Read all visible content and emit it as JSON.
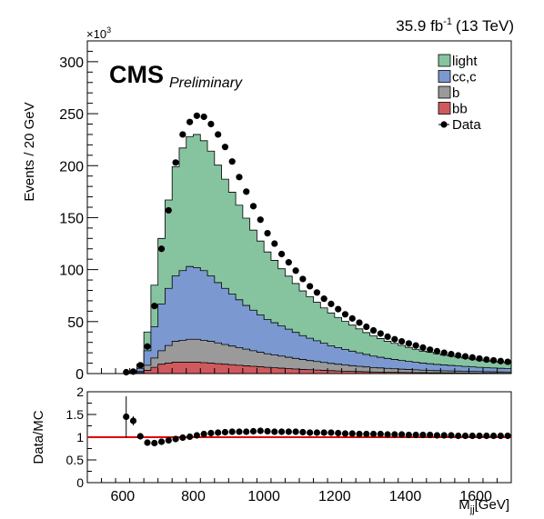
{
  "header": {
    "lumi": "35.9 fb",
    "lumi_sup": "-1",
    "energy": "(13 TeV)",
    "exponent_prefix": "×10",
    "exponent_sup": "3",
    "cms": "CMS",
    "preliminary": "Preliminary"
  },
  "colors": {
    "light": "#86c4a0",
    "cc_c": "#7b99d0",
    "b": "#9a9a9a",
    "bb": "#cf5a5e",
    "ratio_line": "#e00000"
  },
  "chart_data": [
    {
      "type": "area",
      "stacked": true,
      "ylabel": "Events / 20 GeV",
      "xlim": [
        500,
        1700
      ],
      "ylim": [
        0,
        320
      ],
      "y_unit_multiplier": 1000,
      "yticks": [
        0,
        50,
        100,
        150,
        200,
        250,
        300
      ],
      "ytick_labels": [
        "0",
        "50",
        "100",
        "150",
        "200",
        "250",
        "300"
      ],
      "legend_placement": "top-right",
      "legend": [
        {
          "key": "light",
          "label": "light"
        },
        {
          "key": "cc_c",
          "label": "cc,c"
        },
        {
          "key": "b",
          "label": "b"
        },
        {
          "key": "bb",
          "label": "bb"
        },
        {
          "key": "data",
          "label": "Data"
        }
      ],
      "bin_width": 20,
      "bin_edges": [
        600,
        620,
        640,
        660,
        680,
        700,
        720,
        740,
        760,
        780,
        800,
        820,
        840,
        860,
        880,
        900,
        920,
        940,
        960,
        980,
        1000,
        1020,
        1040,
        1060,
        1080,
        1100,
        1120,
        1140,
        1160,
        1180,
        1200,
        1220,
        1240,
        1260,
        1280,
        1300,
        1320,
        1340,
        1360,
        1380,
        1400,
        1420,
        1440,
        1460,
        1480,
        1500,
        1520,
        1540,
        1560,
        1580,
        1600,
        1620,
        1640,
        1660,
        1680,
        1700
      ],
      "series": [
        {
          "key": "bb",
          "name": "bb",
          "values": [
            0,
            0.3,
            1,
            3,
            6,
            9,
            10,
            11,
            11,
            11,
            11,
            10.5,
            10,
            9.5,
            9,
            8.5,
            8,
            7.5,
            7,
            6.5,
            6,
            5.6,
            5.2,
            4.8,
            4.4,
            4,
            3.7,
            3.4,
            3.1,
            2.8,
            2.5,
            2.3,
            2.1,
            1.9,
            1.7,
            1.5,
            1.4,
            1.3,
            1.2,
            1.1,
            1,
            0.9,
            0.8,
            0.75,
            0.7,
            0.65,
            0.6,
            0.55,
            0.5,
            0.47,
            0.44,
            0.41,
            0.38,
            0.35,
            0.32
          ]
        },
        {
          "key": "b",
          "name": "b",
          "values": [
            0,
            0.3,
            1,
            5,
            9,
            13,
            17,
            20,
            21,
            22,
            22,
            21.5,
            21,
            20,
            19,
            18,
            17,
            16,
            15,
            14,
            13,
            12.3,
            11.6,
            10.9,
            10.2,
            9.5,
            8.8,
            8.2,
            7.6,
            7,
            6.5,
            6,
            5.5,
            5.1,
            4.7,
            4.3,
            4,
            3.7,
            3.4,
            3.1,
            2.9,
            2.7,
            2.5,
            2.3,
            2.1,
            2,
            1.9,
            1.8,
            1.7,
            1.6,
            1.5,
            1.4,
            1.3,
            1.25,
            1.2
          ]
        },
        {
          "key": "cc_c",
          "name": "cc,c",
          "values": [
            0,
            0.4,
            3,
            14,
            30,
            45,
            55,
            63,
            67,
            70,
            69,
            67,
            63,
            58,
            54,
            50,
            46,
            42,
            39,
            36,
            33,
            31,
            29,
            27,
            25,
            23,
            21.5,
            20,
            18.5,
            17,
            16,
            15,
            14,
            13,
            12,
            11,
            10.3,
            9.6,
            9,
            8.4,
            7.8,
            7.3,
            6.8,
            6.4,
            6,
            5.6,
            5.3,
            5,
            4.7,
            4.4,
            4.1,
            3.9,
            3.7,
            3.5,
            3.3
          ]
        },
        {
          "key": "light",
          "name": "light",
          "values": [
            0,
            0.5,
            4,
            18,
            40,
            63,
            85,
            105,
            118,
            125,
            128,
            125,
            120,
            113,
            105,
            98,
            91,
            84,
            77,
            71,
            65,
            60,
            55,
            51,
            47,
            43,
            40,
            37,
            34,
            31.5,
            29,
            27,
            25,
            23,
            21,
            19.5,
            18,
            16.5,
            15.5,
            14.5,
            13.5,
            12.5,
            11.5,
            11,
            10.2,
            9.5,
            9,
            8.5,
            8,
            7.5,
            7,
            6.6,
            6.2,
            5.8,
            5.5
          ]
        }
      ],
      "data_points": {
        "name": "Data",
        "x": [
          610,
          630,
          650,
          670,
          690,
          710,
          730,
          750,
          770,
          790,
          810,
          830,
          850,
          870,
          890,
          910,
          930,
          950,
          970,
          990,
          1010,
          1030,
          1050,
          1070,
          1090,
          1110,
          1130,
          1150,
          1170,
          1190,
          1210,
          1230,
          1250,
          1270,
          1290,
          1310,
          1330,
          1350,
          1370,
          1390,
          1410,
          1430,
          1450,
          1470,
          1490,
          1510,
          1530,
          1550,
          1570,
          1590,
          1610,
          1630,
          1650,
          1670,
          1690
        ],
        "y": [
          1.3,
          1.9,
          8,
          26,
          65,
          120,
          157,
          203,
          230,
          242,
          248,
          247,
          240,
          230,
          218,
          204,
          189,
          175,
          161,
          148,
          135,
          125,
          115,
          107,
          99,
          91,
          84,
          78,
          72,
          67,
          62,
          57,
          53,
          49,
          45,
          41.5,
          38.5,
          35.5,
          33,
          31,
          29,
          27,
          25,
          23,
          21.5,
          20,
          18.7,
          17.5,
          16.5,
          15.5,
          14.5,
          13.5,
          12.7,
          12,
          11.3
        ]
      }
    },
    {
      "type": "scatter",
      "ylabel": "Data/MC",
      "xlabel_main": "M",
      "xlabel_sub": "jj",
      "xlabel_unit": "[GeV]",
      "xlim": [
        500,
        1700
      ],
      "ylim": [
        0,
        2
      ],
      "xticks": [
        600,
        800,
        1000,
        1200,
        1400,
        1600
      ],
      "xtick_labels": [
        "600",
        "800",
        "1000",
        "1200",
        "1400",
        "1600"
      ],
      "yticks": [
        0,
        0.5,
        1,
        1.5,
        2
      ],
      "ytick_labels": [
        "0",
        "0.5",
        "1",
        "1.5",
        "2"
      ],
      "reference_line": 1,
      "x": [
        610,
        630,
        650,
        670,
        690,
        710,
        730,
        750,
        770,
        790,
        810,
        830,
        850,
        870,
        890,
        910,
        930,
        950,
        970,
        990,
        1010,
        1030,
        1050,
        1070,
        1090,
        1110,
        1130,
        1150,
        1170,
        1190,
        1210,
        1230,
        1250,
        1270,
        1290,
        1310,
        1330,
        1350,
        1370,
        1390,
        1410,
        1430,
        1450,
        1470,
        1490,
        1510,
        1530,
        1550,
        1570,
        1590,
        1610,
        1630,
        1650,
        1670,
        1690
      ],
      "y": [
        1.45,
        1.36,
        1.02,
        0.88,
        0.87,
        0.9,
        0.93,
        0.96,
        0.99,
        1.01,
        1.04,
        1.07,
        1.09,
        1.1,
        1.11,
        1.12,
        1.12,
        1.12,
        1.13,
        1.14,
        1.13,
        1.12,
        1.12,
        1.12,
        1.12,
        1.11,
        1.1,
        1.1,
        1.1,
        1.1,
        1.09,
        1.08,
        1.08,
        1.07,
        1.07,
        1.07,
        1.07,
        1.06,
        1.06,
        1.06,
        1.05,
        1.05,
        1.05,
        1.05,
        1.04,
        1.04,
        1.04,
        1.03,
        1.03,
        1.03,
        1.03,
        1.03,
        1.03,
        1.03,
        1.03
      ],
      "err": [
        0.45,
        0.1,
        0.03,
        0.03,
        0.02,
        0.02,
        0.02,
        0.02,
        0.02,
        0.02,
        0.02,
        0.02,
        0.02,
        0.02,
        0.02,
        0.02,
        0.02,
        0.02,
        0.02,
        0.02,
        0.02,
        0.02,
        0.02,
        0.02,
        0.02,
        0.02,
        0.02,
        0.02,
        0.02,
        0.02,
        0.02,
        0.02,
        0.02,
        0.02,
        0.02,
        0.02,
        0.02,
        0.02,
        0.02,
        0.02,
        0.02,
        0.02,
        0.02,
        0.02,
        0.02,
        0.02,
        0.02,
        0.02,
        0.02,
        0.02,
        0.02,
        0.02,
        0.02,
        0.02,
        0.02
      ]
    }
  ]
}
